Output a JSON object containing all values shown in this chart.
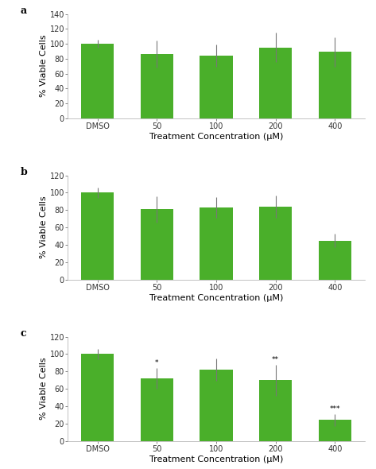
{
  "categories": [
    "DMSO",
    "50",
    "100",
    "200",
    "400"
  ],
  "panel_a": {
    "label": "a",
    "values": [
      100,
      86,
      84,
      95,
      89
    ],
    "errors": [
      5,
      18,
      15,
      20,
      20
    ],
    "ylim": [
      0,
      140
    ],
    "yticks": [
      0,
      20,
      40,
      60,
      80,
      100,
      120,
      140
    ],
    "annotations": [
      "",
      "",
      "",
      "",
      ""
    ]
  },
  "panel_b": {
    "label": "b",
    "values": [
      100,
      81,
      83,
      84,
      45
    ],
    "errors": [
      6,
      15,
      12,
      13,
      8
    ],
    "ylim": [
      0,
      120
    ],
    "yticks": [
      0,
      20,
      40,
      60,
      80,
      100,
      120
    ],
    "annotations": [
      "",
      "",
      "",
      "",
      ""
    ]
  },
  "panel_c": {
    "label": "c",
    "values": [
      100,
      72,
      82,
      70,
      24
    ],
    "errors": [
      6,
      12,
      13,
      18,
      7
    ],
    "ylim": [
      0,
      120
    ],
    "yticks": [
      0,
      20,
      40,
      60,
      80,
      100,
      120
    ],
    "annotations": [
      "",
      "*",
      "",
      "**",
      "***"
    ]
  },
  "bar_color": "#4aaf2a",
  "error_color": "#777777",
  "ylabel": "% Viable Cells",
  "xlabel": "Treatment Concentration (μM)",
  "bg_color": "#ffffff",
  "panel_label_fontsize": 9,
  "tick_fontsize": 7,
  "axis_label_fontsize": 8
}
